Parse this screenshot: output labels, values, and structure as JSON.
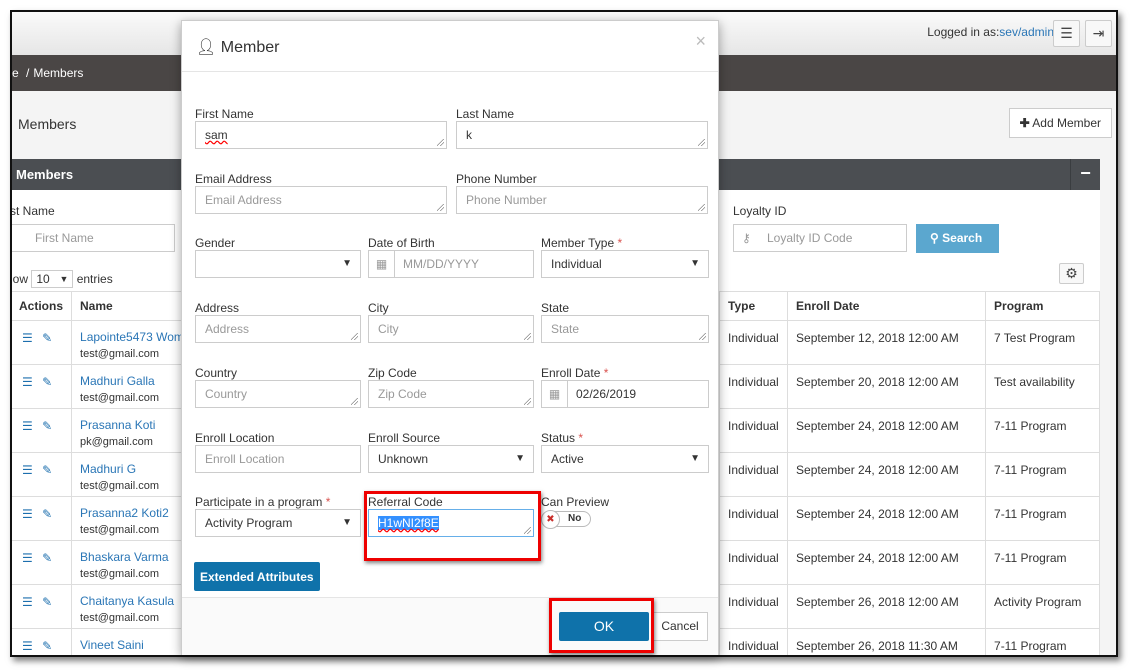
{
  "header": {
    "logged_in_label": "Logged in as:",
    "user": "sev/admin",
    "menu_icon": "hamburger-icon",
    "logout_icon": "sign-out-icon"
  },
  "breadcrumb": {
    "prev": "e",
    "sep": "/",
    "current": "Members"
  },
  "page": {
    "title": "Members",
    "add_button": "Add Member"
  },
  "panel": {
    "title": "Members",
    "collapse_icon": "minus-icon"
  },
  "filters": {
    "first_name_label": "rst Name",
    "first_name_placeholder": "First Name",
    "loyalty_label": "Loyalty ID",
    "loyalty_placeholder": "Loyalty ID Code",
    "search_button": "Search"
  },
  "entries": {
    "show": "how",
    "value": "10",
    "suffix": "entries"
  },
  "table": {
    "headers": {
      "actions": "Actions",
      "name": "Name",
      "type": "Type",
      "enroll": "Enroll Date",
      "program": "Program"
    },
    "rows": [
      {
        "name": "Lapointe5473 Wom",
        "email": "test@gmail.com",
        "type": "Individual",
        "enroll": "September 12, 2018 12:00 AM",
        "program": "7 Test Program"
      },
      {
        "name": "Madhuri Galla",
        "email": "test@gmail.com",
        "type": "Individual",
        "enroll": "September 20, 2018 12:00 AM",
        "program": "Test availability"
      },
      {
        "name": "Prasanna Koti",
        "email": "pk@gmail.com",
        "type": "Individual",
        "enroll": "September 24, 2018 12:00 AM",
        "program": "7-11 Program"
      },
      {
        "name": "Madhuri G",
        "email": "test@gmail.com",
        "type": "Individual",
        "enroll": "September 24, 2018 12:00 AM",
        "program": "7-11 Program"
      },
      {
        "name": "Prasanna2 Koti2",
        "email": "test@gmail.com",
        "type": "Individual",
        "enroll": "September 24, 2018 12:00 AM",
        "program": "7-11 Program"
      },
      {
        "name": "Bhaskara Varma",
        "email": "test@gmail.com",
        "type": "Individual",
        "enroll": "September 24, 2018 12:00 AM",
        "program": "7-11 Program"
      },
      {
        "name": "Chaitanya Kasula",
        "email": "test@gmail.com",
        "type": "Individual",
        "enroll": "September 26, 2018 12:00 AM",
        "program": "Activity Program"
      },
      {
        "name": "Vineet Saini",
        "email": "",
        "type": "Individual",
        "enroll": "September 26, 2018 11:30 AM",
        "program": "7-11 Program"
      }
    ]
  },
  "modal": {
    "title": "Member",
    "close": "×",
    "fields": {
      "first_name": {
        "label": "First Name",
        "value": "sam"
      },
      "last_name": {
        "label": "Last Name",
        "value": "k"
      },
      "email": {
        "label": "Email Address",
        "placeholder": "Email Address"
      },
      "phone": {
        "label": "Phone Number",
        "placeholder": "Phone Number"
      },
      "gender": {
        "label": "Gender",
        "value": ""
      },
      "dob": {
        "label": "Date of Birth",
        "placeholder": "MM/DD/YYYY"
      },
      "member_type": {
        "label": "Member Type",
        "value": "Individual"
      },
      "address": {
        "label": "Address",
        "placeholder": "Address"
      },
      "city": {
        "label": "City",
        "placeholder": "City"
      },
      "state": {
        "label": "State",
        "placeholder": "State"
      },
      "country": {
        "label": "Country",
        "placeholder": "Country"
      },
      "zip": {
        "label": "Zip Code",
        "placeholder": "Zip Code"
      },
      "enroll_date": {
        "label": "Enroll Date",
        "value": "02/26/2019"
      },
      "enroll_location": {
        "label": "Enroll Location",
        "placeholder": "Enroll Location"
      },
      "enroll_source": {
        "label": "Enroll Source",
        "value": "Unknown"
      },
      "status": {
        "label": "Status",
        "value": "Active"
      },
      "program": {
        "label": "Participate in a program",
        "value": "Activity Program"
      },
      "referral": {
        "label": "Referral Code",
        "value": "H1wNI2f8E"
      },
      "can_preview": {
        "label": "Can Preview",
        "value": "No",
        "on": false
      }
    },
    "required_mark": "*",
    "extended_button": "Extended Attributes",
    "ok_button": "OK",
    "cancel_button": "Cancel"
  },
  "colors": {
    "primary": "#0f72aa",
    "search": "#5ba7cf",
    "highlight": "#ee0000",
    "link": "#2a76b6"
  }
}
